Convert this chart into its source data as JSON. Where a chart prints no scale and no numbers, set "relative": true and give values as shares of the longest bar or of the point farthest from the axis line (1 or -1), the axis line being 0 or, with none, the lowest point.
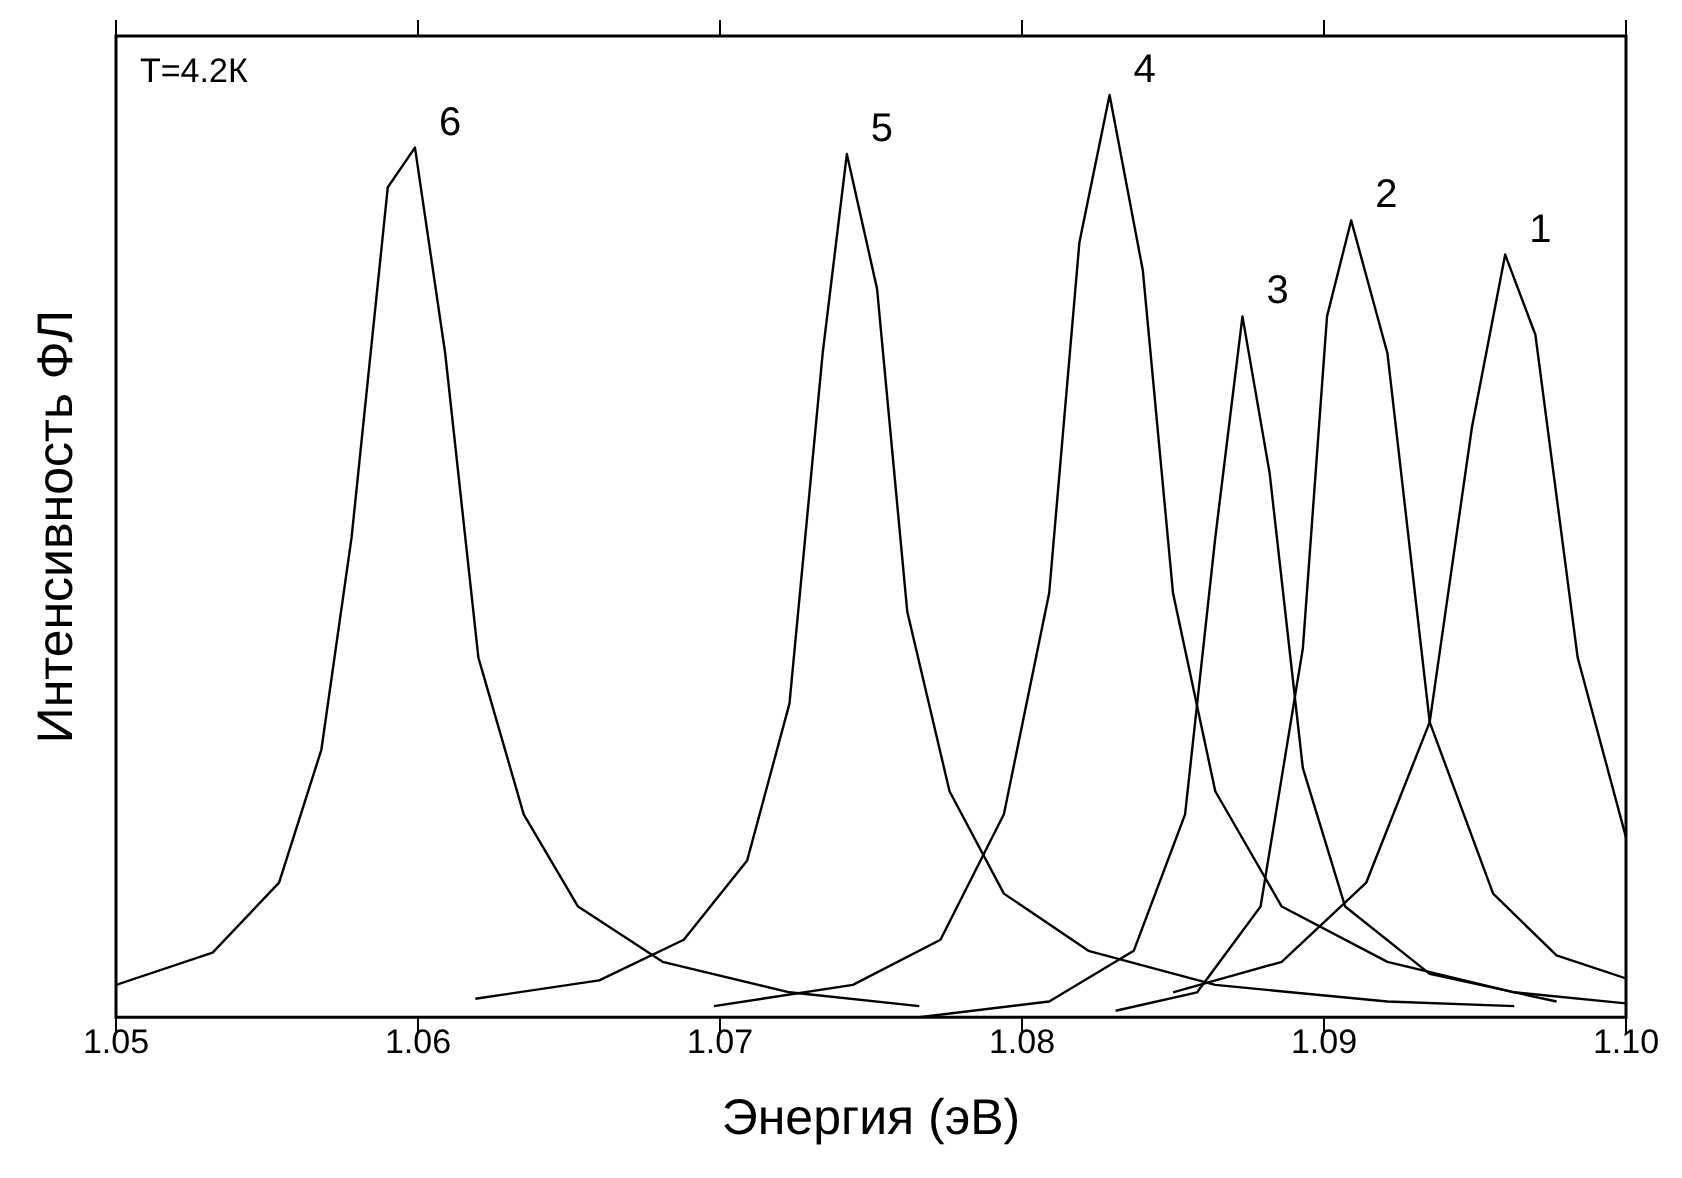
{
  "chart_data": {
    "type": "line",
    "xlabel": "Энергия (эВ)",
    "ylabel": "Интенсивность ФЛ",
    "relative": true,
    "xlim": [
      1.05,
      1.1
    ],
    "xticks": [
      1.05,
      1.06,
      1.07,
      1.08,
      1.09,
      {
        "value": 1.1,
        "label": "1.10"
      }
    ],
    "grid": false,
    "legend": false,
    "marker": "none",
    "line_style": "solid",
    "annotations": [
      "T=4.2К"
    ],
    "series": [
      {
        "name": "6",
        "color": "#000000",
        "x": [
          1.05,
          1.0532,
          1.0554,
          1.0568,
          1.0578,
          1.059,
          1.0599,
          1.0609,
          1.062,
          1.0635,
          1.0653,
          1.0681,
          1.0723,
          1.0766
        ],
        "values": [
          0.035,
          0.07,
          0.146,
          0.29,
          0.52,
          0.9,
          0.943,
          0.72,
          0.39,
          0.22,
          0.12,
          0.06,
          0.027,
          0.012
        ]
      },
      {
        "name": "5",
        "color": "#000000",
        "x": [
          1.0619,
          1.066,
          1.0688,
          1.0709,
          1.0723,
          1.0734,
          1.0742,
          1.0752,
          1.0762,
          1.0776,
          1.0794,
          1.0822,
          1.0864,
          1.0921,
          1.0963
        ],
        "values": [
          0.02,
          0.04,
          0.084,
          0.17,
          0.34,
          0.72,
          0.936,
          0.79,
          0.44,
          0.245,
          0.134,
          0.072,
          0.035,
          0.017,
          0.012
        ]
      },
      {
        "name": "4",
        "color": "#000000",
        "x": [
          1.0698,
          1.0744,
          1.0773,
          1.0794,
          1.0809,
          1.0819,
          1.0829,
          1.084,
          1.085,
          1.0864,
          1.0886,
          1.0921,
          1.0963,
          1.1
        ],
        "values": [
          0.012,
          0.035,
          0.084,
          0.22,
          0.46,
          0.84,
          1,
          0.81,
          0.46,
          0.245,
          0.12,
          0.06,
          0.027,
          0.015
        ]
      },
      {
        "name": "3",
        "color": "#000000",
        "x": [
          1.0766,
          1.0809,
          1.0837,
          1.0854,
          1.0864,
          1.0873,
          1.0882,
          1.0893,
          1.0907,
          1.0935,
          1.0977
        ],
        "values": [
          0,
          0.017,
          0.072,
          0.22,
          0.52,
          0.76,
          0.59,
          0.27,
          0.12,
          0.047,
          0.017
        ]
      },
      {
        "name": "2",
        "color": "#000000",
        "x": [
          1.0831,
          1.0858,
          1.0879,
          1.0893,
          1.0901,
          1.0909,
          1.0921,
          1.0935,
          1.0956,
          1.0977,
          1.1
        ],
        "values": [
          0.007,
          0.027,
          0.12,
          0.4,
          0.76,
          0.864,
          0.72,
          0.32,
          0.134,
          0.067,
          0.042
        ]
      },
      {
        "name": "1",
        "color": "#000000",
        "x": [
          1.085,
          1.0886,
          1.0914,
          1.0935,
          1.0949,
          1.096,
          1.097,
          1.0984,
          1.1
        ],
        "values": [
          0.027,
          0.06,
          0.146,
          0.32,
          0.64,
          0.827,
          0.74,
          0.39,
          0.195
        ]
      }
    ]
  }
}
